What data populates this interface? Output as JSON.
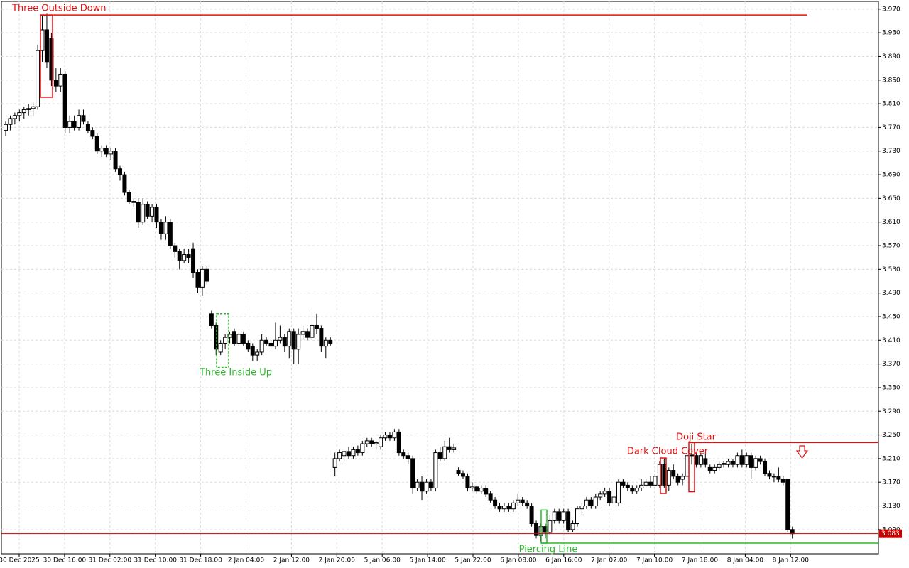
{
  "chart_data": {
    "type": "candlestick",
    "ylim": [
      3.049,
      3.983
    ],
    "yticks": [
      {
        "value": 3.97,
        "label": "3.970"
      },
      {
        "value": 3.93,
        "label": "3.930"
      },
      {
        "value": 3.89,
        "label": "3.890"
      },
      {
        "value": 3.85,
        "label": "3.850"
      },
      {
        "value": 3.81,
        "label": "3.810"
      },
      {
        "value": 3.77,
        "label": "3.770"
      },
      {
        "value": 3.73,
        "label": "3.730"
      },
      {
        "value": 3.69,
        "label": "3.690"
      },
      {
        "value": 3.65,
        "label": "3.650"
      },
      {
        "value": 3.61,
        "label": "3.610"
      },
      {
        "value": 3.57,
        "label": "3.570"
      },
      {
        "value": 3.53,
        "label": "3.530"
      },
      {
        "value": 3.49,
        "label": "3.490"
      },
      {
        "value": 3.45,
        "label": "3.450"
      },
      {
        "value": 3.41,
        "label": "3.410"
      },
      {
        "value": 3.37,
        "label": "3.370"
      },
      {
        "value": 3.33,
        "label": "3.330"
      },
      {
        "value": 3.29,
        "label": "3.290"
      },
      {
        "value": 3.25,
        "label": "3.250"
      },
      {
        "value": 3.21,
        "label": "3.210"
      },
      {
        "value": 3.17,
        "label": "3.170"
      },
      {
        "value": 3.13,
        "label": "3.130"
      },
      {
        "value": 3.09,
        "label": "3.090"
      }
    ],
    "xticks": [
      "30 Dec 2025",
      "30 Dec 16:00",
      "31 Dec 02:00",
      "31 Dec 10:00",
      "31 Dec 18:00",
      "2 Jan 04:00",
      "2 Jan 12:00",
      "2 Jan 20:00",
      "5 Jan 06:00",
      "5 Jan 14:00",
      "5 Jan 22:00",
      "6 Jan 08:00",
      "6 Jan 16:00",
      "7 Jan 02:00",
      "7 Jan 10:00",
      "7 Jan 18:00",
      "8 Jan 04:00",
      "8 Jan 12:00"
    ],
    "grid": true,
    "price": 3.083,
    "price_color": "#c80000",
    "up_color": "#ffffff",
    "down_color": "#000000",
    "candles": [
      [
        3.765,
        3.78,
        3.755,
        3.775
      ],
      [
        3.775,
        3.79,
        3.765,
        3.785
      ],
      [
        3.785,
        3.795,
        3.775,
        3.79
      ],
      [
        3.79,
        3.8,
        3.78,
        3.795
      ],
      [
        3.795,
        3.805,
        3.785,
        3.8
      ],
      [
        3.8,
        3.81,
        3.79,
        3.802
      ],
      [
        3.802,
        3.812,
        3.79,
        3.805
      ],
      [
        3.805,
        3.91,
        3.8,
        3.9
      ],
      [
        3.9,
        3.96,
        3.88,
        3.935
      ],
      [
        3.935,
        3.962,
        3.87,
        3.88
      ],
      [
        3.92,
        3.93,
        3.84,
        3.85
      ],
      [
        3.85,
        3.87,
        3.83,
        3.84
      ],
      [
        3.84,
        3.87,
        3.83,
        3.86
      ],
      [
        3.86,
        3.865,
        3.76,
        3.77
      ],
      [
        3.77,
        3.79,
        3.76,
        3.78
      ],
      [
        3.78,
        3.79,
        3.765,
        3.77
      ],
      [
        3.77,
        3.8,
        3.765,
        3.79
      ],
      [
        3.79,
        3.8,
        3.775,
        3.78
      ],
      [
        3.775,
        3.78,
        3.76,
        3.765
      ],
      [
        3.765,
        3.77,
        3.75,
        3.755
      ],
      [
        3.755,
        3.76,
        3.725,
        3.73
      ],
      [
        3.73,
        3.74,
        3.72,
        3.735
      ],
      [
        3.735,
        3.74,
        3.72,
        3.725
      ],
      [
        3.725,
        3.735,
        3.715,
        3.73
      ],
      [
        3.73,
        3.735,
        3.695,
        3.7
      ],
      [
        3.7,
        3.705,
        3.68,
        3.69
      ],
      [
        3.69,
        3.695,
        3.655,
        3.66
      ],
      [
        3.66,
        3.665,
        3.64,
        3.645
      ],
      [
        3.645,
        3.65,
        3.635,
        3.643
      ],
      [
        3.643,
        3.65,
        3.6,
        3.61
      ],
      [
        3.61,
        3.65,
        3.605,
        3.64
      ],
      [
        3.64,
        3.645,
        3.615,
        3.62
      ],
      [
        3.62,
        3.64,
        3.61,
        3.635
      ],
      [
        3.635,
        3.64,
        3.6,
        3.61
      ],
      [
        3.61,
        3.615,
        3.58,
        3.59
      ],
      [
        3.59,
        3.62,
        3.58,
        3.61
      ],
      [
        3.61,
        3.615,
        3.565,
        3.57
      ],
      [
        3.57,
        3.575,
        3.55,
        3.56
      ],
      [
        3.56,
        3.565,
        3.53,
        3.545
      ],
      [
        3.545,
        3.565,
        3.54,
        3.555
      ],
      [
        3.555,
        3.565,
        3.54,
        3.55
      ],
      [
        3.565,
        3.575,
        3.515,
        3.525
      ],
      [
        3.525,
        3.53,
        3.49,
        3.5
      ],
      [
        3.5,
        3.535,
        3.485,
        3.53
      ],
      [
        3.53,
        3.535,
        3.505,
        3.51
      ],
      [
        3.455,
        3.46,
        3.43,
        3.435
      ],
      [
        3.435,
        3.44,
        3.385,
        3.395
      ],
      [
        3.39,
        3.41,
        3.385,
        3.405
      ],
      [
        3.405,
        3.42,
        3.395,
        3.415
      ],
      [
        3.415,
        3.425,
        3.405,
        3.42
      ],
      [
        3.425,
        3.43,
        3.4,
        3.405
      ],
      [
        3.405,
        3.425,
        3.4,
        3.42
      ],
      [
        3.42,
        3.425,
        3.4,
        3.405
      ],
      [
        3.405,
        3.41,
        3.39,
        3.395
      ],
      [
        3.4,
        3.405,
        3.375,
        3.385
      ],
      [
        3.385,
        3.395,
        3.375,
        3.39
      ],
      [
        3.39,
        3.42,
        3.385,
        3.41
      ],
      [
        3.41,
        3.415,
        3.4,
        3.405
      ],
      [
        3.405,
        3.41,
        3.395,
        3.4
      ],
      [
        3.4,
        3.44,
        3.395,
        3.41
      ],
      [
        3.41,
        3.435,
        3.405,
        3.415
      ],
      [
        3.415,
        3.42,
        3.39,
        3.4
      ],
      [
        3.4,
        3.43,
        3.38,
        3.425
      ],
      [
        3.425,
        3.43,
        3.37,
        3.395
      ],
      [
        3.395,
        3.43,
        3.37,
        3.42
      ],
      [
        3.42,
        3.435,
        3.41,
        3.425
      ],
      [
        3.425,
        3.43,
        3.41,
        3.415
      ],
      [
        3.415,
        3.465,
        3.41,
        3.435
      ],
      [
        3.435,
        3.455,
        3.42,
        3.43
      ],
      [
        3.43,
        3.435,
        3.39,
        3.4
      ],
      [
        3.4,
        3.415,
        3.38,
        3.41
      ],
      [
        3.41,
        3.415,
        3.4,
        3.405
      ],
      [
        3.195,
        3.22,
        3.18,
        3.21
      ],
      [
        3.21,
        3.225,
        3.205,
        3.22
      ],
      [
        3.215,
        3.225,
        3.205,
        3.222
      ],
      [
        3.222,
        3.23,
        3.21,
        3.215
      ],
      [
        3.215,
        3.23,
        3.21,
        3.225
      ],
      [
        3.225,
        3.232,
        3.215,
        3.22
      ],
      [
        3.22,
        3.24,
        3.215,
        3.235
      ],
      [
        3.235,
        3.245,
        3.23,
        3.24
      ],
      [
        3.24,
        3.245,
        3.23,
        3.235
      ],
      [
        3.235,
        3.24,
        3.225,
        3.237
      ],
      [
        3.23,
        3.25,
        3.225,
        3.245
      ],
      [
        3.245,
        3.255,
        3.24,
        3.25
      ],
      [
        3.25,
        3.255,
        3.24,
        3.245
      ],
      [
        3.245,
        3.26,
        3.24,
        3.255
      ],
      [
        3.255,
        3.26,
        3.215,
        3.22
      ],
      [
        3.22,
        3.225,
        3.21,
        3.215
      ],
      [
        3.215,
        3.22,
        3.2,
        3.21
      ],
      [
        3.21,
        3.215,
        3.15,
        3.16
      ],
      [
        3.16,
        3.175,
        3.155,
        3.17
      ],
      [
        3.17,
        3.18,
        3.14,
        3.155
      ],
      [
        3.155,
        3.175,
        3.15,
        3.17
      ],
      [
        3.17,
        3.175,
        3.155,
        3.16
      ],
      [
        3.16,
        3.225,
        3.155,
        3.22
      ],
      [
        3.22,
        3.23,
        3.205,
        3.21
      ],
      [
        3.21,
        3.24,
        3.205,
        3.23
      ],
      [
        3.23,
        3.245,
        3.22,
        3.225
      ],
      [
        3.225,
        3.235,
        3.22,
        3.228
      ],
      [
        3.19,
        3.195,
        3.18,
        3.185
      ],
      [
        3.185,
        3.19,
        3.175,
        3.18
      ],
      [
        3.18,
        3.185,
        3.155,
        3.16
      ],
      [
        3.16,
        3.17,
        3.155,
        3.162
      ],
      [
        3.162,
        3.165,
        3.15,
        3.155
      ],
      [
        3.155,
        3.165,
        3.15,
        3.16
      ],
      [
        3.16,
        3.165,
        3.145,
        3.15
      ],
      [
        3.15,
        3.155,
        3.135,
        3.14
      ],
      [
        3.14,
        3.145,
        3.125,
        3.13
      ],
      [
        3.13,
        3.135,
        3.12,
        3.125
      ],
      [
        3.125,
        3.135,
        3.12,
        3.13
      ],
      [
        3.13,
        3.135,
        3.12,
        3.125
      ],
      [
        3.125,
        3.14,
        3.12,
        3.135
      ],
      [
        3.135,
        3.15,
        3.13,
        3.14
      ],
      [
        3.14,
        3.145,
        3.13,
        3.135
      ],
      [
        3.135,
        3.14,
        3.125,
        3.13
      ],
      [
        3.13,
        3.135,
        3.095,
        3.1
      ],
      [
        3.1,
        3.105,
        3.075,
        3.08
      ],
      [
        3.08,
        3.1,
        3.07,
        3.095
      ],
      [
        3.095,
        3.1,
        3.075,
        3.085
      ],
      [
        3.085,
        3.115,
        3.08,
        3.105
      ],
      [
        3.105,
        3.125,
        3.1,
        3.12
      ],
      [
        3.12,
        3.125,
        3.1,
        3.105
      ],
      [
        3.105,
        3.125,
        3.1,
        3.12
      ],
      [
        3.12,
        3.125,
        3.085,
        3.09
      ],
      [
        3.09,
        3.105,
        3.085,
        3.1
      ],
      [
        3.1,
        3.13,
        3.095,
        3.125
      ],
      [
        3.125,
        3.135,
        3.115,
        3.13
      ],
      [
        3.13,
        3.145,
        3.125,
        3.14
      ],
      [
        3.14,
        3.145,
        3.125,
        3.13
      ],
      [
        3.13,
        3.15,
        3.125,
        3.145
      ],
      [
        3.145,
        3.155,
        3.14,
        3.15
      ],
      [
        3.15,
        3.16,
        3.145,
        3.155
      ],
      [
        3.155,
        3.16,
        3.13,
        3.135
      ],
      [
        3.135,
        3.15,
        3.13,
        3.145
      ],
      [
        3.135,
        3.175,
        3.13,
        3.17
      ],
      [
        3.17,
        3.175,
        3.16,
        3.165
      ],
      [
        3.165,
        3.17,
        3.155,
        3.16
      ],
      [
        3.16,
        3.165,
        3.15,
        3.155
      ],
      [
        3.155,
        3.165,
        3.15,
        3.16
      ],
      [
        3.16,
        3.175,
        3.155,
        3.165
      ],
      [
        3.165,
        3.175,
        3.16,
        3.17
      ],
      [
        3.17,
        3.18,
        3.16,
        3.165
      ],
      [
        3.165,
        3.185,
        3.16,
        3.18
      ],
      [
        3.165,
        3.205,
        3.16,
        3.2
      ],
      [
        3.2,
        3.21,
        3.16,
        3.165
      ],
      [
        3.165,
        3.195,
        3.155,
        3.19
      ],
      [
        3.19,
        3.2,
        3.175,
        3.18
      ],
      [
        3.18,
        3.185,
        3.165,
        3.17
      ],
      [
        3.175,
        3.185,
        3.165,
        3.18
      ],
      [
        3.18,
        3.225,
        3.175,
        3.215
      ],
      [
        3.215,
        3.235,
        3.2,
        3.216
      ],
      [
        3.215,
        3.22,
        3.195,
        3.2
      ],
      [
        3.2,
        3.22,
        3.195,
        3.215
      ],
      [
        3.21,
        3.22,
        3.195,
        3.2
      ],
      [
        3.195,
        3.2,
        3.185,
        3.19
      ],
      [
        3.19,
        3.2,
        3.185,
        3.195
      ],
      [
        3.195,
        3.205,
        3.19,
        3.2
      ],
      [
        3.2,
        3.205,
        3.195,
        3.202
      ],
      [
        3.2,
        3.21,
        3.195,
        3.205
      ],
      [
        3.205,
        3.21,
        3.195,
        3.2
      ],
      [
        3.2,
        3.22,
        3.195,
        3.215
      ],
      [
        3.215,
        3.225,
        3.195,
        3.2
      ],
      [
        3.2,
        3.22,
        3.195,
        3.215
      ],
      [
        3.215,
        3.22,
        3.175,
        3.195
      ],
      [
        3.195,
        3.215,
        3.19,
        3.21
      ],
      [
        3.21,
        3.215,
        3.2,
        3.205
      ],
      [
        3.205,
        3.21,
        3.18,
        3.185
      ],
      [
        3.185,
        3.19,
        3.175,
        3.18
      ],
      [
        3.18,
        3.185,
        3.17,
        3.18
      ],
      [
        3.18,
        3.195,
        3.17,
        3.175
      ],
      [
        3.175,
        3.18,
        3.165,
        3.17
      ],
      [
        3.175,
        3.175,
        3.085,
        3.09
      ],
      [
        3.09,
        3.095,
        3.075,
        3.083
      ]
    ],
    "patterns": [
      {
        "text": "Three Outside Down",
        "box": [
          3.821,
          3.96
        ],
        "level": 3.96,
        "color": "#e01010"
      },
      {
        "text": "Three Inside Up",
        "box": [
          3.364,
          3.455
        ],
        "color": "#2cb82c"
      },
      {
        "text": "Piercing Line",
        "box": [
          3.067,
          3.123
        ],
        "level": 3.067,
        "color": "#2cb82c"
      },
      {
        "text": "Dark Cloud Cover",
        "box": [
          3.151,
          3.211
        ],
        "color": "#e01010"
      },
      {
        "text": "Doji Star",
        "box": [
          3.154,
          3.237
        ],
        "level": 3.237,
        "color": "#e01010"
      }
    ]
  }
}
